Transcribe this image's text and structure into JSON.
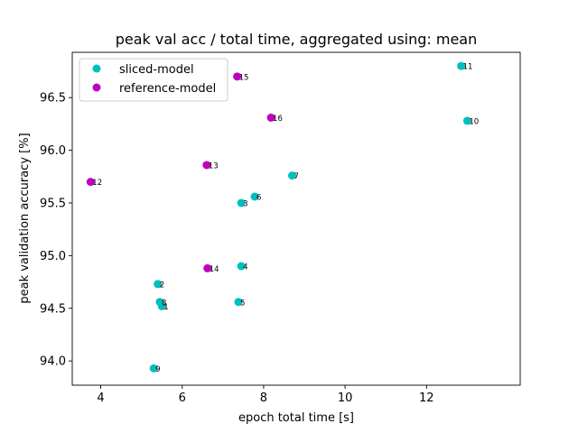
{
  "chart_data": {
    "type": "scatter",
    "title": "peak val acc / total time, aggregated using: mean",
    "xlabel": "epoch total time [s]",
    "ylabel": "peak validation accuracy [%]",
    "xlim": [
      3.3,
      14.3
    ],
    "ylim": [
      93.77,
      96.93
    ],
    "xticks": [
      4,
      6,
      8,
      10,
      12
    ],
    "yticks": [
      94.0,
      94.5,
      95.0,
      95.5,
      96.0,
      96.5
    ],
    "grid": false,
    "legend": "upper-left",
    "series": [
      {
        "name": "sliced-model",
        "color": "#00bfbf",
        "points": [
          {
            "label": "1",
            "x": 5.5,
            "y": 94.52
          },
          {
            "label": "2",
            "x": 5.4,
            "y": 94.73
          },
          {
            "label": "3",
            "x": 7.45,
            "y": 95.5
          },
          {
            "label": "4",
            "x": 7.45,
            "y": 94.9
          },
          {
            "label": "5",
            "x": 7.38,
            "y": 94.56
          },
          {
            "label": "6",
            "x": 7.78,
            "y": 95.56
          },
          {
            "label": "7",
            "x": 8.7,
            "y": 95.76
          },
          {
            "label": "8",
            "x": 5.45,
            "y": 94.56
          },
          {
            "label": "9",
            "x": 5.3,
            "y": 93.93
          },
          {
            "label": "10",
            "x": 13.0,
            "y": 96.28
          },
          {
            "label": "11",
            "x": 12.85,
            "y": 96.8
          }
        ]
      },
      {
        "name": "reference-model",
        "color": "#bf00bf",
        "points": [
          {
            "label": "12",
            "x": 3.75,
            "y": 95.7
          },
          {
            "label": "13",
            "x": 6.6,
            "y": 95.86
          },
          {
            "label": "14",
            "x": 6.62,
            "y": 94.88
          },
          {
            "label": "15",
            "x": 7.35,
            "y": 96.7
          },
          {
            "label": "16",
            "x": 8.18,
            "y": 96.31
          }
        ]
      }
    ]
  }
}
